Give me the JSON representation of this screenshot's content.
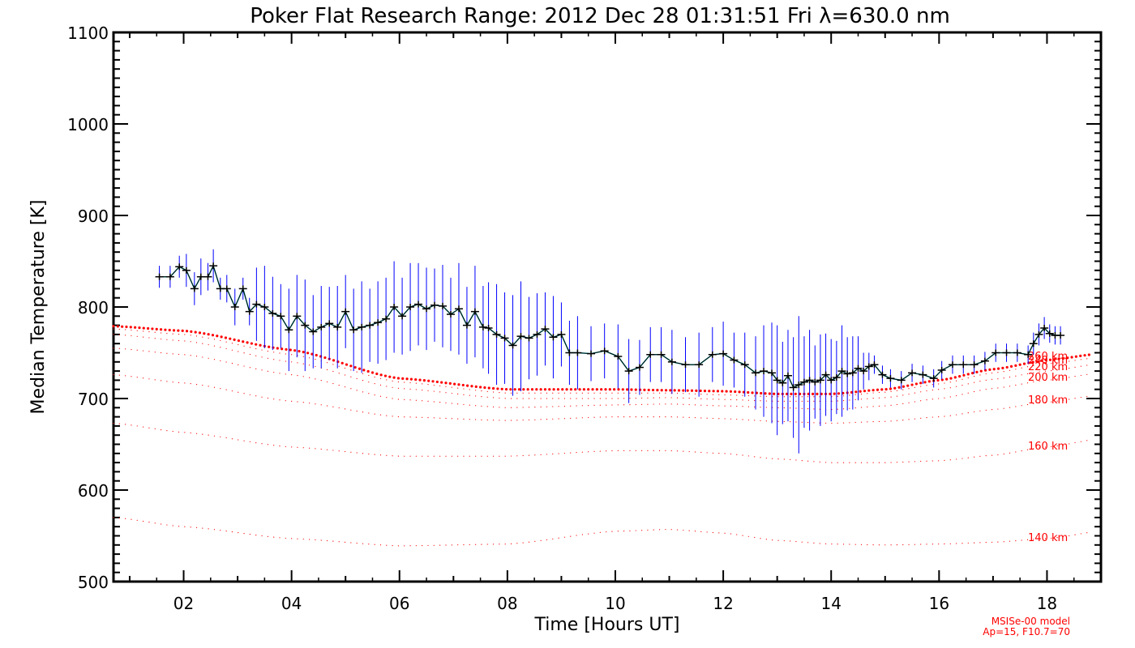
{
  "chart_data": {
    "type": "line",
    "title": "Poker Flat Research Range: 2012 Dec 28 01:31:51 Fri λ=630.0 nm",
    "xlabel": "Time [Hours UT]",
    "ylabel": "Median Temperature [K]",
    "xlim": [
      0.7,
      19.0
    ],
    "ylim": [
      500,
      1100
    ],
    "x_ticks": [
      2,
      4,
      6,
      8,
      10,
      12,
      14,
      16,
      18
    ],
    "x_tick_labels": [
      "02",
      "04",
      "06",
      "08",
      "10",
      "12",
      "14",
      "16",
      "18"
    ],
    "y_ticks": [
      500,
      600,
      700,
      800,
      900,
      1000,
      1100
    ],
    "y_tick_labels": [
      "500",
      "600",
      "700",
      "800",
      "900",
      "1000",
      "1100"
    ],
    "grid": false,
    "colors": {
      "measured": "#000000",
      "error_bars": "#0000ff",
      "model": "#ff0000",
      "link": "#008080"
    },
    "measured": {
      "x": [
        1.55,
        1.75,
        1.92,
        2.05,
        2.2,
        2.32,
        2.45,
        2.55,
        2.68,
        2.8,
        2.95,
        3.1,
        3.22,
        3.35,
        3.5,
        3.65,
        3.8,
        3.95,
        4.1,
        4.25,
        4.4,
        4.55,
        4.7,
        4.85,
        5.0,
        5.15,
        5.3,
        5.45,
        5.6,
        5.75,
        5.9,
        6.05,
        6.2,
        6.35,
        6.5,
        6.65,
        6.8,
        6.95,
        7.1,
        7.25,
        7.4,
        7.55,
        7.65,
        7.8,
        7.95,
        8.1,
        8.25,
        8.4,
        8.55,
        8.7,
        8.85,
        9.0,
        9.15,
        9.3,
        9.55,
        9.8,
        10.05,
        10.25,
        10.45,
        10.65,
        10.85,
        11.05,
        11.3,
        11.55,
        11.8,
        12.0,
        12.2,
        12.4,
        12.6,
        12.75,
        12.9,
        13.0,
        13.1,
        13.2,
        13.3,
        13.4,
        13.5,
        13.6,
        13.7,
        13.8,
        13.9,
        14.0,
        14.1,
        14.2,
        14.3,
        14.4,
        14.5,
        14.6,
        14.7,
        14.8,
        14.95,
        15.1,
        15.3,
        15.5,
        15.7,
        15.9,
        16.05,
        16.25,
        16.45,
        16.65,
        16.85,
        17.05,
        17.25,
        17.45,
        17.65,
        17.75,
        17.85,
        17.95,
        18.05,
        18.15,
        18.25
      ],
      "y": [
        833,
        833,
        844,
        840,
        820,
        833,
        833,
        845,
        820,
        820,
        800,
        820,
        795,
        803,
        800,
        793,
        790,
        775,
        790,
        780,
        773,
        778,
        782,
        778,
        795,
        775,
        778,
        780,
        783,
        787,
        800,
        790,
        800,
        803,
        798,
        802,
        801,
        792,
        798,
        780,
        795,
        778,
        777,
        770,
        766,
        758,
        768,
        766,
        770,
        776,
        767,
        770,
        750,
        750,
        749,
        752,
        746,
        730,
        734,
        748,
        748,
        740,
        737,
        737,
        748,
        749,
        742,
        737,
        728,
        730,
        728,
        720,
        717,
        725,
        712,
        715,
        718,
        720,
        718,
        720,
        726,
        720,
        723,
        730,
        727,
        728,
        733,
        730,
        735,
        737,
        726,
        722,
        720,
        728,
        726,
        722,
        731,
        737,
        737,
        737,
        741,
        750,
        750,
        750,
        748,
        760,
        770,
        777,
        771,
        769,
        769
      ],
      "err": [
        12,
        12,
        12,
        18,
        18,
        20,
        15,
        18,
        12,
        15,
        20,
        12,
        15,
        40,
        45,
        40,
        35,
        45,
        45,
        50,
        40,
        45,
        40,
        45,
        40,
        45,
        50,
        40,
        45,
        45,
        50,
        42,
        48,
        45,
        45,
        40,
        45,
        40,
        50,
        42,
        50,
        45,
        50,
        55,
        50,
        55,
        60,
        45,
        45,
        40,
        45,
        35,
        35,
        40,
        30,
        30,
        35,
        35,
        30,
        30,
        30,
        35,
        30,
        35,
        30,
        35,
        30,
        35,
        40,
        50,
        55,
        60,
        45,
        50,
        55,
        75,
        50,
        55,
        40,
        50,
        45,
        45,
        40,
        50,
        40,
        40,
        35,
        20,
        15,
        10,
        10,
        10,
        10,
        10,
        10,
        10,
        10,
        10,
        10,
        10,
        10,
        10,
        10,
        10,
        10,
        12,
        12,
        12,
        10,
        10,
        10
      ]
    },
    "model_series": [
      {
        "label": "260 km",
        "x": [
          0.7,
          2,
          4,
          6,
          8,
          10,
          11,
          12,
          13,
          14,
          15,
          16,
          17,
          18,
          19
        ],
        "y": [
          779,
          774,
          753,
          722,
          710,
          710,
          709,
          708,
          705,
          705,
          710,
          720,
          732,
          742,
          749
        ]
      },
      {
        "label": "240 km",
        "x": [
          0.7,
          2,
          4,
          6,
          8,
          10,
          11,
          12,
          13,
          14,
          15,
          16,
          17,
          18,
          19
        ],
        "y": [
          776,
          770,
          748,
          718,
          706,
          706,
          706,
          704,
          702,
          702,
          707,
          716,
          728,
          738,
          745
        ]
      },
      {
        "label": "220 km",
        "x": [
          0.7,
          2,
          4,
          6,
          8,
          10,
          11,
          12,
          13,
          14,
          15,
          16,
          17,
          18,
          19
        ],
        "y": [
          770,
          763,
          740,
          711,
          700,
          700,
          701,
          699,
          697,
          697,
          701,
          710,
          721,
          730,
          738
        ]
      },
      {
        "label": "200 km",
        "x": [
          0.7,
          2,
          4,
          6,
          8,
          10,
          11,
          12,
          13,
          14,
          15,
          16,
          17,
          18,
          19
        ],
        "y": [
          755,
          748,
          726,
          699,
          690,
          693,
          694,
          692,
          690,
          688,
          692,
          700,
          711,
          720,
          728
        ]
      },
      {
        "label": "180 km",
        "x": [
          0.7,
          2,
          4,
          6,
          8,
          10,
          11,
          12,
          13,
          14,
          15,
          16,
          17,
          18,
          19
        ],
        "y": [
          726,
          717,
          697,
          680,
          676,
          680,
          680,
          678,
          675,
          673,
          675,
          680,
          688,
          696,
          704
        ]
      },
      {
        "label": "160 km",
        "x": [
          0.7,
          2,
          4,
          6,
          8,
          10,
          11,
          12,
          13,
          14,
          15,
          16,
          17,
          18,
          19
        ],
        "y": [
          673,
          663,
          647,
          637,
          637,
          643,
          643,
          640,
          634,
          630,
          630,
          632,
          638,
          647,
          656
        ]
      },
      {
        "label": "140 km",
        "x": [
          0.7,
          2,
          4,
          6,
          8,
          10,
          11,
          12,
          13,
          14,
          15,
          16,
          17,
          18,
          19
        ],
        "y": [
          570,
          560,
          547,
          539,
          541,
          555,
          557,
          553,
          545,
          541,
          540,
          541,
          543,
          547,
          555
        ]
      }
    ],
    "annotations": [
      "MSISe-00 model",
      "Ap=15, F10.7=70"
    ]
  }
}
